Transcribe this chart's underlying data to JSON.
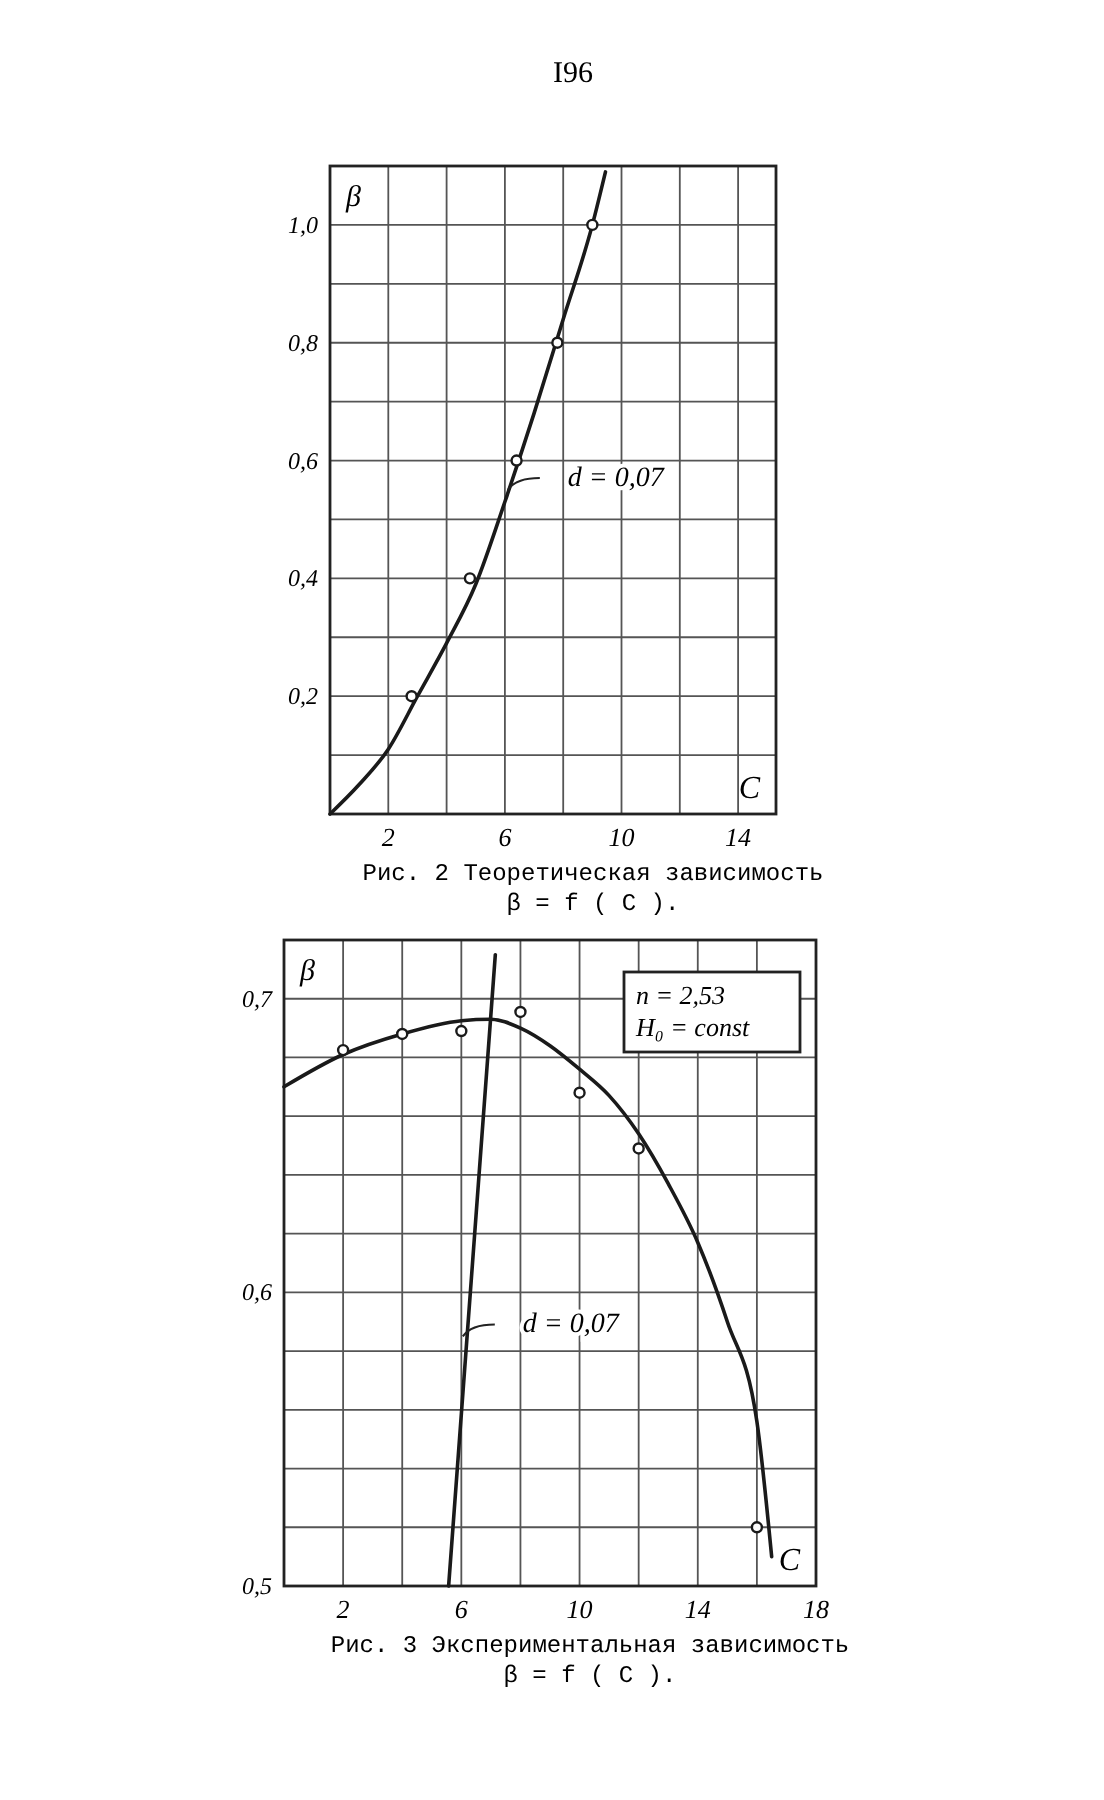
{
  "chart_data": [
    {
      "type": "line",
      "title": "Рис. 2  Теоретическая зависимость",
      "subtitle": "β = f ( C ).",
      "xlabel": "C",
      "ylabel": "β",
      "xlim": [
        0,
        15.3
      ],
      "ylim": [
        0,
        1.1
      ],
      "xticks": [
        {
          "value": 2,
          "label": "2"
        },
        {
          "value": 4,
          "label": null
        },
        {
          "value": 6,
          "label": "6"
        },
        {
          "value": 8,
          "label": null
        },
        {
          "value": 10,
          "label": "10"
        },
        {
          "value": 12,
          "label": null
        },
        {
          "value": 14,
          "label": "14"
        }
      ],
      "yticks": [
        {
          "value": 0.1,
          "label": null
        },
        {
          "value": 0.2,
          "label": "0,2"
        },
        {
          "value": 0.3,
          "label": null
        },
        {
          "value": 0.4,
          "label": "0,4"
        },
        {
          "value": 0.5,
          "label": null
        },
        {
          "value": 0.6,
          "label": "0,6"
        },
        {
          "value": 0.7,
          "label": null
        },
        {
          "value": 0.8,
          "label": "0,8"
        },
        {
          "value": 0.9,
          "label": null
        },
        {
          "value": 1.0,
          "label": "1,0"
        }
      ],
      "grid": true,
      "annotations": [
        "I96",
        {
          "text": "d = 0,07",
          "x": 6.1,
          "y": 0.55
        }
      ],
      "series": [
        {
          "color": "#1a1a1a",
          "marker": "none",
          "x": [
            0,
            1,
            2,
            3,
            4,
            5,
            6,
            7,
            8,
            9,
            9.45
          ],
          "values": [
            0,
            0.05,
            0.11,
            0.2,
            0.29,
            0.39,
            0.53,
            0.68,
            0.84,
            1.0,
            1.09
          ]
        },
        {
          "type": "scatter",
          "color": "#1a1a1a",
          "marker": "circle",
          "x": [
            2.8,
            4.8,
            6.4,
            7.8,
            9.0
          ],
          "values": [
            0.2,
            0.4,
            0.6,
            0.8,
            1.0
          ]
        }
      ]
    },
    {
      "type": "line",
      "title": "Рис. 3  Экспериментальная зависимость",
      "subtitle": "β = f ( C ).",
      "xlabel": "C",
      "ylabel": "β",
      "xlim": [
        0,
        18
      ],
      "ylim": [
        0.5,
        0.72
      ],
      "xticks": [
        {
          "value": 2,
          "label": "2"
        },
        {
          "value": 4,
          "label": null
        },
        {
          "value": 6,
          "label": "6"
        },
        {
          "value": 8,
          "label": null
        },
        {
          "value": 10,
          "label": "10"
        },
        {
          "value": 12,
          "label": null
        },
        {
          "value": 14,
          "label": "14"
        },
        {
          "value": 16,
          "label": null
        },
        {
          "value": 18,
          "label": "18"
        }
      ],
      "yticks": [
        {
          "value": 0.5,
          "label": "0,5"
        },
        {
          "value": 0.52,
          "label": null
        },
        {
          "value": 0.54,
          "label": null
        },
        {
          "value": 0.56,
          "label": null
        },
        {
          "value": 0.58,
          "label": null
        },
        {
          "value": 0.6,
          "label": "0,6"
        },
        {
          "value": 0.62,
          "label": null
        },
        {
          "value": 0.64,
          "label": null
        },
        {
          "value": 0.66,
          "label": null
        },
        {
          "value": 0.68,
          "label": null
        },
        {
          "value": 0.7,
          "label": "0,7"
        }
      ],
      "grid": true,
      "annotations": [
        "n = 2,53",
        "H₀ = const",
        {
          "text": "d = 0,07",
          "x": 6.05,
          "y": 0.585
        }
      ],
      "series": [
        {
          "color": "#1a1a1a",
          "marker": "none",
          "x": [
            0,
            2,
            4,
            6,
            7,
            8,
            9,
            10,
            11,
            12,
            13,
            14,
            15,
            16,
            16.5
          ],
          "values": [
            0.67,
            0.681,
            0.688,
            0.6925,
            0.693,
            0.69,
            0.684,
            0.676,
            0.667,
            0.654,
            0.637,
            0.617,
            0.59,
            0.556,
            0.51
          ]
        },
        {
          "color": "#1a1a1a",
          "marker": "none",
          "x": [
            5.57,
            7.15
          ],
          "values": [
            0.5,
            0.715
          ]
        },
        {
          "type": "scatter",
          "color": "#1a1a1a",
          "marker": "circle",
          "x": [
            2,
            4,
            6,
            8,
            10,
            12,
            16
          ],
          "values": [
            0.6825,
            0.688,
            0.689,
            0.6955,
            0.668,
            0.649,
            0.52
          ]
        }
      ]
    }
  ]
}
